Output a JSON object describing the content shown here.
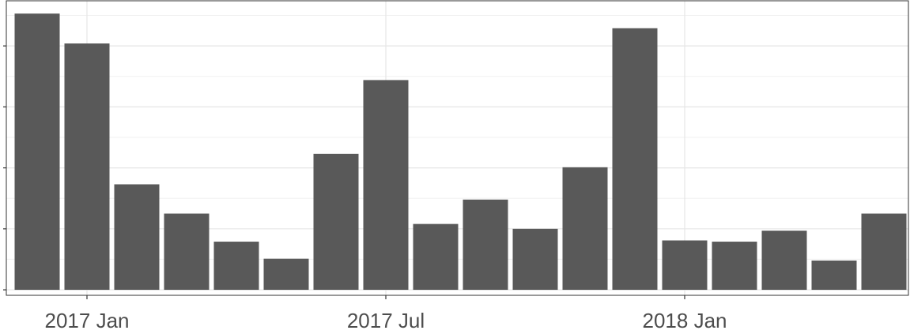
{
  "chart_data": {
    "type": "bar",
    "categories": [
      null,
      "2017 Jan",
      null,
      null,
      null,
      null,
      null,
      "2017 Jul",
      null,
      null,
      null,
      null,
      null,
      "2018 Jan",
      null,
      null,
      null,
      null
    ],
    "values": [
      4.53,
      4.04,
      1.73,
      1.25,
      0.79,
      0.51,
      2.23,
      3.44,
      1.08,
      1.48,
      1.0,
      2.01,
      4.29,
      0.81,
      0.79,
      0.97,
      0.48,
      1.25
    ],
    "color": "#595959",
    "ylim": [
      -0.09,
      4.74
    ],
    "yticks": [
      0,
      1,
      2,
      3,
      4
    ],
    "grid": true
  }
}
